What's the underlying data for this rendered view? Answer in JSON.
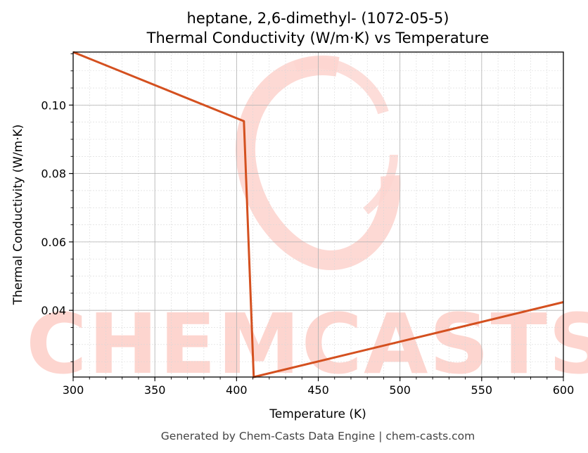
{
  "chart_data": {
    "type": "line",
    "title": "heptane, 2,6-dimethyl- (1072-05-5)",
    "subtitle": "Thermal Conductivity (W/m·K) vs Temperature",
    "xlabel": "Temperature (K)",
    "ylabel": "Thermal Conductivity (W/m·K)",
    "xlim": [
      300,
      600
    ],
    "ylim": [
      0.0205,
      0.1155
    ],
    "xticks": [
      300,
      350,
      400,
      450,
      500,
      550,
      600
    ],
    "xtick_labels": [
      "300",
      "350",
      "400",
      "450",
      "500",
      "550",
      "600"
    ],
    "yticks": [
      0.04,
      0.06,
      0.08,
      0.1
    ],
    "ytick_labels": [
      "0.04",
      "0.06",
      "0.08",
      "0.10"
    ],
    "grid": true,
    "series": [
      {
        "color": "#d4501f",
        "x": [
          300,
          404.5,
          410.5,
          600
        ],
        "y": [
          0.1155,
          0.0953,
          0.0205,
          0.0424
        ]
      }
    ]
  },
  "watermark": {
    "text": "CHEMCASTS",
    "color": "#fdd5cf"
  },
  "footer": "Generated by Chem-Casts Data Engine | chem-casts.com"
}
